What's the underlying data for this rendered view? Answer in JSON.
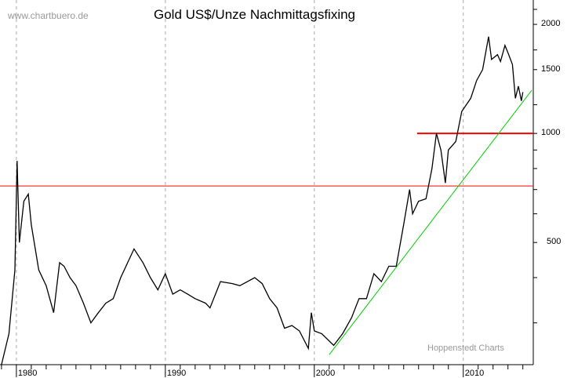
{
  "chart_data": {
    "type": "line",
    "title": "Gold US$/Unze Nachmittagsfixing",
    "watermark": "www.chartbuero.de",
    "credit": "Hoppenstedt Charts",
    "y_scale": "log",
    "ylim": [
      230,
      2335
    ],
    "xlim": [
      1978.9,
      2014.7
    ],
    "y_ticks": [
      500,
      1000,
      1500,
      2000
    ],
    "x_ticks": [
      1980,
      1990,
      2000,
      2010
    ],
    "grid": "vertical dashed at decades",
    "colors": {
      "price": "#000000",
      "resistance": "#ff0000",
      "trend": "#00cc00",
      "grid": "#aaaaaa"
    },
    "series": [
      {
        "x": [
          1979.0,
          1979.5,
          1979.9,
          1980.05,
          1980.2,
          1980.5,
          1980.8,
          1981.0,
          1981.5,
          1982.0,
          1982.5,
          1982.9,
          1983.2,
          1983.6,
          1984.0,
          1984.5,
          1985.0,
          1985.5,
          1986.0,
          1986.5,
          1987.0,
          1987.9,
          1988.5,
          1989.0,
          1989.5,
          1990.0,
          1990.5,
          1991.0,
          1991.5,
          1992.0,
          1992.7,
          1993.0,
          1993.7,
          1994.5,
          1995.0,
          1996.0,
          1996.5,
          1997.0,
          1997.5,
          1998.0,
          1998.5,
          1999.0,
          1999.6,
          1999.8,
          2000.0,
          2000.5,
          2001.3,
          2001.9,
          2002.5,
          2003.0,
          2003.5,
          2004.0,
          2004.5,
          2005.0,
          2005.5,
          2006.0,
          2006.4,
          2006.6,
          2007.0,
          2007.5,
          2007.9,
          2008.2,
          2008.5,
          2008.8,
          2009.0,
          2009.5,
          2009.9,
          2010.5,
          2010.9,
          2011.3,
          2011.7,
          2011.9,
          2012.3,
          2012.5,
          2012.8,
          2013.0,
          2013.3,
          2013.5,
          2013.7,
          2013.9,
          2014.0
        ],
        "y": [
          230,
          280,
          420,
          840,
          500,
          650,
          680,
          560,
          420,
          380,
          320,
          440,
          430,
          400,
          380,
          340,
          300,
          320,
          340,
          350,
          400,
          480,
          440,
          400,
          370,
          410,
          360,
          370,
          360,
          350,
          340,
          330,
          390,
          385,
          380,
          400,
          385,
          350,
          330,
          290,
          295,
          285,
          255,
          320,
          285,
          280,
          260,
          280,
          310,
          350,
          350,
          410,
          390,
          430,
          430,
          560,
          700,
          600,
          650,
          660,
          800,
          1000,
          900,
          730,
          900,
          950,
          1150,
          1250,
          1400,
          1500,
          1850,
          1600,
          1650,
          1580,
          1750,
          1670,
          1550,
          1250,
          1350,
          1230,
          1300
        ]
      }
    ],
    "annotations": [
      {
        "type": "hline",
        "value": 1000,
        "from_x": 2006.9,
        "color": "#ff0000",
        "weight": "thick"
      },
      {
        "type": "hline",
        "value": 716,
        "color": "#ff0000",
        "weight": "thin"
      },
      {
        "type": "trendline",
        "from": [
          2001.0,
          245
        ],
        "to": [
          2014.6,
          1316
        ],
        "color": "#00cc00"
      }
    ]
  }
}
